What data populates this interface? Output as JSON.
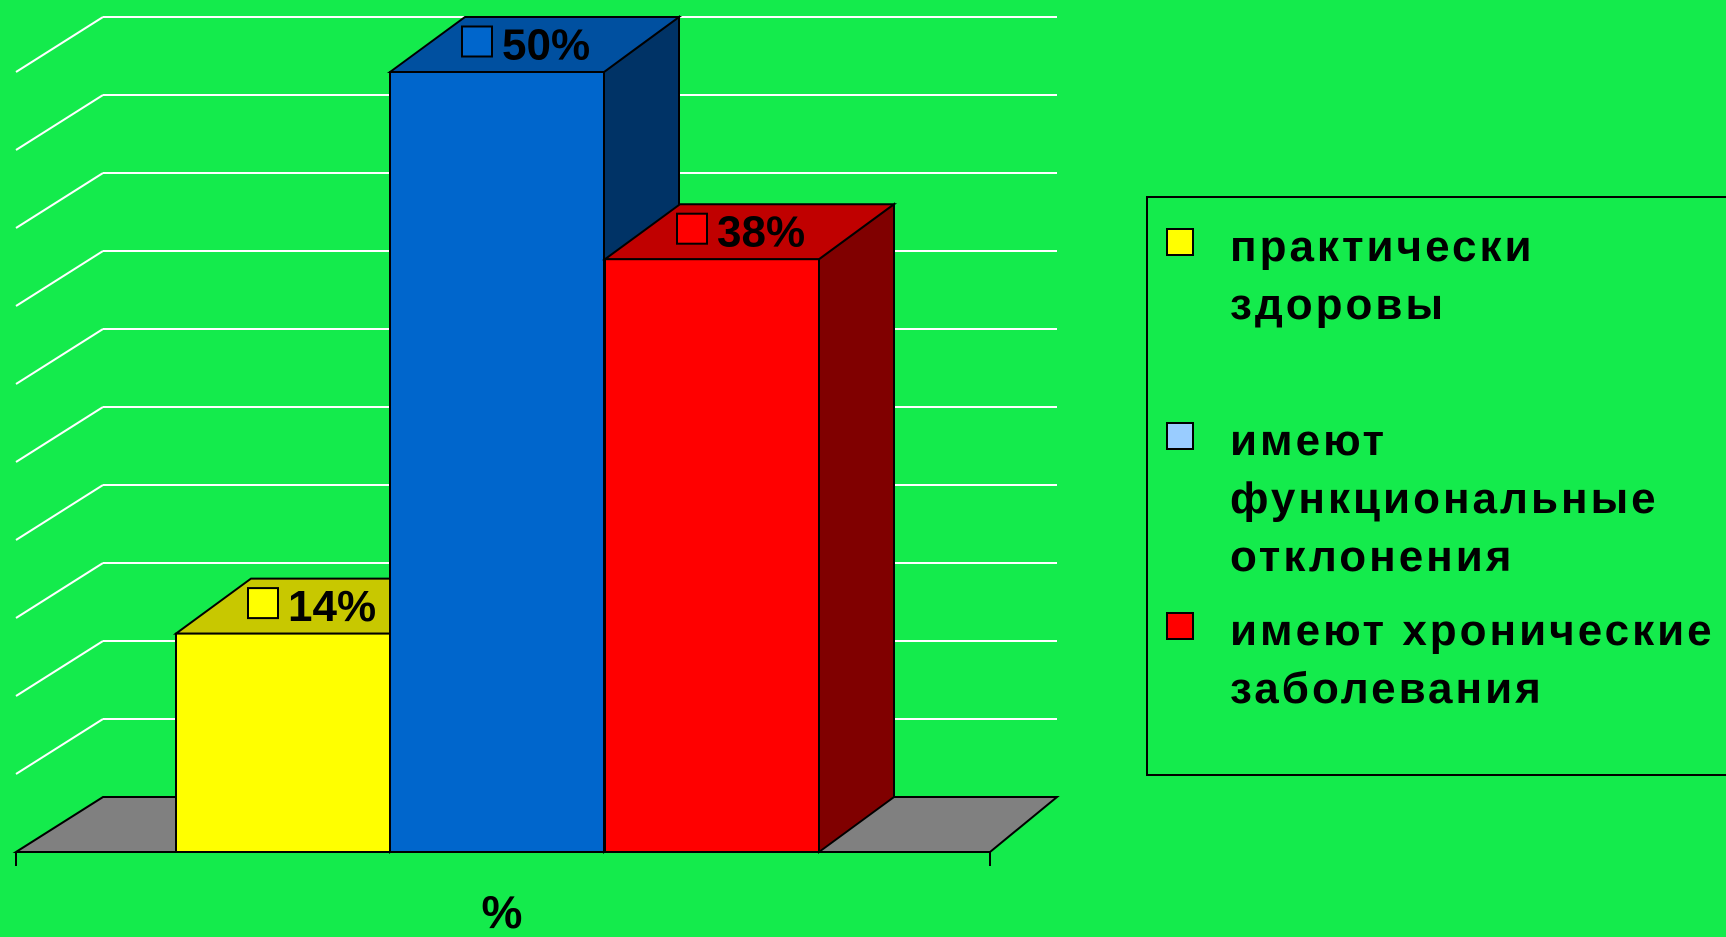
{
  "chart_data": {
    "type": "bar",
    "variant": "3d-clustered-column",
    "categories": [
      "%"
    ],
    "series": [
      {
        "name": "практически здоровы",
        "values": [
          14
        ],
        "label": "14%"
      },
      {
        "name": "имеют функциональные отклонения",
        "values": [
          50
        ],
        "label": "50%"
      },
      {
        "name": "имеют хронические заболевания",
        "values": [
          38
        ],
        "label": "38%"
      }
    ],
    "ylim": [
      0,
      55
    ],
    "grid": true,
    "legend": "right",
    "title": "",
    "xlabel": "",
    "ylabel": ""
  },
  "colors": {
    "background": "#14eb4c",
    "gridline": "#ffffff",
    "floor": "#808080",
    "series": [
      {
        "front": "#ffff00",
        "top": "#c8c800",
        "side": "#9a9a00",
        "legend": "#ffff00"
      },
      {
        "front": "#0066cc",
        "top": "#0050a0",
        "side": "#003366",
        "legend": "#99ccff"
      },
      {
        "front": "#ff0000",
        "top": "#c00000",
        "side": "#800000",
        "legend": "#ff0000"
      }
    ]
  },
  "legend": {
    "items": [
      {
        "text": "практически\nздоровы"
      },
      {
        "text": "имеют\nфункциональные\nотклонения"
      },
      {
        "text": "имеют хронические\nзаболевания"
      }
    ]
  }
}
